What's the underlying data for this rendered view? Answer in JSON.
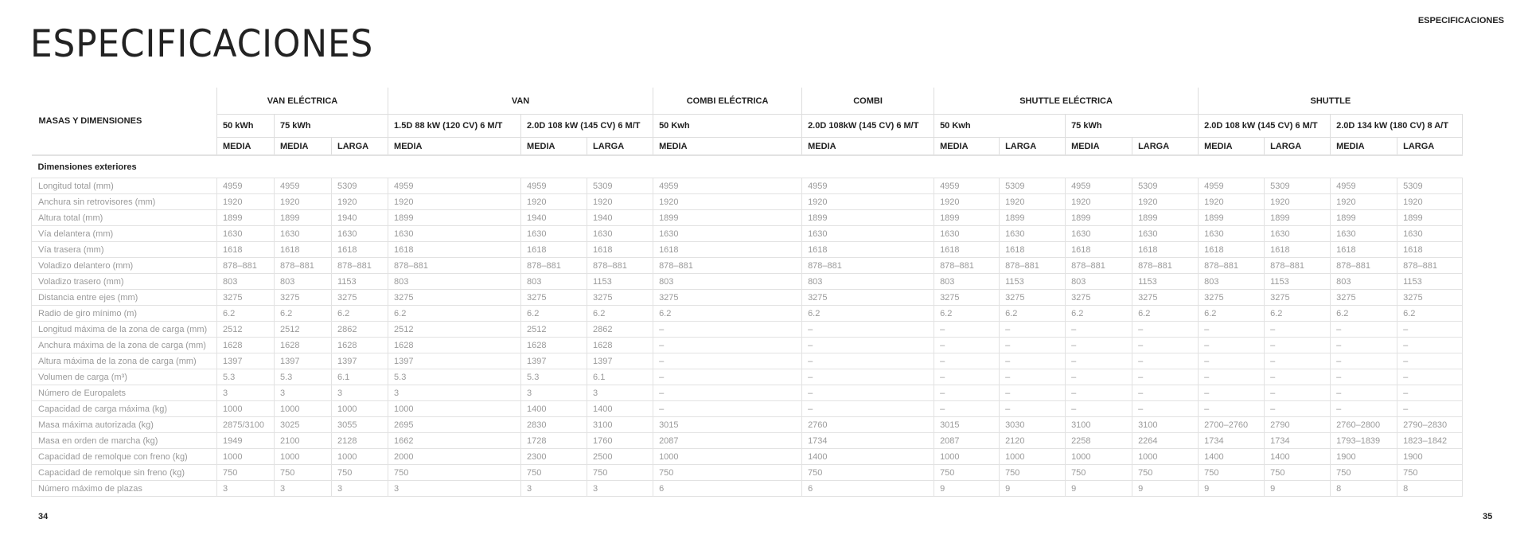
{
  "page_title": "ESPECIFICACIONES",
  "running_head": "ESPECIFICACIONES",
  "page_numbers": {
    "left": "34",
    "right": "35"
  },
  "table": {
    "corner_label": "MASAS Y DIMENSIONES",
    "groups": [
      {
        "label": "VAN ELÉCTRICA",
        "span": 3
      },
      {
        "label": "VAN",
        "span": 3
      },
      {
        "label": "COMBI ELÉCTRICA",
        "span": 1
      },
      {
        "label": "COMBI",
        "span": 1
      },
      {
        "label": "SHUTTLE ELÉCTRICA",
        "span": 4
      },
      {
        "label": "SHUTTLE",
        "span": 4
      }
    ],
    "engines": [
      {
        "label": "50 kWh",
        "span": 1
      },
      {
        "label": "75 kWh",
        "span": 2
      },
      {
        "label": "1.5D 88 kW (120 CV) 6 M/T",
        "span": 1
      },
      {
        "label": "2.0D 108 kW (145 CV) 6 M/T",
        "span": 2
      },
      {
        "label": "50 Kwh",
        "span": 1
      },
      {
        "label": "2.0D 108kW (145 CV) 6 M/T",
        "span": 1
      },
      {
        "label": "50 Kwh",
        "span": 2
      },
      {
        "label": "75 kWh",
        "span": 2
      },
      {
        "label": "2.0D 108 kW (145 CV) 6 M/T",
        "span": 2
      },
      {
        "label": "2.0D 134 kW (180 CV) 8 A/T",
        "span": 2
      }
    ],
    "lengths": [
      "MEDIA",
      "MEDIA",
      "LARGA",
      "MEDIA",
      "MEDIA",
      "LARGA",
      "MEDIA",
      "MEDIA",
      "MEDIA",
      "LARGA",
      "MEDIA",
      "LARGA",
      "MEDIA",
      "LARGA",
      "MEDIA",
      "LARGA"
    ],
    "section": "Dimensiones exteriores",
    "rows": [
      {
        "label": "Longitud total (mm)",
        "values": [
          "4959",
          "4959",
          "5309",
          "4959",
          "4959",
          "5309",
          "4959",
          "4959",
          "4959",
          "5309",
          "4959",
          "5309",
          "4959",
          "5309",
          "4959",
          "5309"
        ]
      },
      {
        "label": "Anchura sin retrovisores (mm)",
        "values": [
          "1920",
          "1920",
          "1920",
          "1920",
          "1920",
          "1920",
          "1920",
          "1920",
          "1920",
          "1920",
          "1920",
          "1920",
          "1920",
          "1920",
          "1920",
          "1920"
        ]
      },
      {
        "label": "Altura total (mm)",
        "values": [
          "1899",
          "1899",
          "1940",
          "1899",
          "1940",
          "1940",
          "1899",
          "1899",
          "1899",
          "1899",
          "1899",
          "1899",
          "1899",
          "1899",
          "1899",
          "1899"
        ]
      },
      {
        "label": "Vía delantera (mm)",
        "values": [
          "1630",
          "1630",
          "1630",
          "1630",
          "1630",
          "1630",
          "1630",
          "1630",
          "1630",
          "1630",
          "1630",
          "1630",
          "1630",
          "1630",
          "1630",
          "1630"
        ]
      },
      {
        "label": "Vía trasera (mm)",
        "values": [
          "1618",
          "1618",
          "1618",
          "1618",
          "1618",
          "1618",
          "1618",
          "1618",
          "1618",
          "1618",
          "1618",
          "1618",
          "1618",
          "1618",
          "1618",
          "1618"
        ]
      },
      {
        "label": "Voladizo delantero (mm)",
        "values": [
          "878–881",
          "878–881",
          "878–881",
          "878–881",
          "878–881",
          "878–881",
          "878–881",
          "878–881",
          "878–881",
          "878–881",
          "878–881",
          "878–881",
          "878–881",
          "878–881",
          "878–881",
          "878–881"
        ]
      },
      {
        "label": "Voladizo trasero (mm)",
        "values": [
          "803",
          "803",
          "1153",
          "803",
          "803",
          "1153",
          "803",
          "803",
          "803",
          "1153",
          "803",
          "1153",
          "803",
          "1153",
          "803",
          "1153"
        ]
      },
      {
        "label": "Distancia entre ejes (mm)",
        "values": [
          "3275",
          "3275",
          "3275",
          "3275",
          "3275",
          "3275",
          "3275",
          "3275",
          "3275",
          "3275",
          "3275",
          "3275",
          "3275",
          "3275",
          "3275",
          "3275"
        ]
      },
      {
        "label": "Radio de giro mínimo (m)",
        "values": [
          "6.2",
          "6.2",
          "6.2",
          "6.2",
          "6.2",
          "6.2",
          "6.2",
          "6.2",
          "6.2",
          "6.2",
          "6.2",
          "6.2",
          "6.2",
          "6.2",
          "6.2",
          "6.2"
        ]
      },
      {
        "label": "Longitud máxima de la zona de carga (mm)",
        "values": [
          "2512",
          "2512",
          "2862",
          "2512",
          "2512",
          "2862",
          "–",
          "–",
          "–",
          "–",
          "–",
          "–",
          "–",
          "–",
          "–",
          "–"
        ]
      },
      {
        "label": "Anchura máxima de la zona de carga (mm)",
        "values": [
          "1628",
          "1628",
          "1628",
          "1628",
          "1628",
          "1628",
          "–",
          "–",
          "–",
          "–",
          "–",
          "–",
          "–",
          "–",
          "–",
          "–"
        ]
      },
      {
        "label": "Altura máxima de la zona de carga (mm)",
        "values": [
          "1397",
          "1397",
          "1397",
          "1397",
          "1397",
          "1397",
          "–",
          "–",
          "–",
          "–",
          "–",
          "–",
          "–",
          "–",
          "–",
          "–"
        ]
      },
      {
        "label": "Volumen de carga (m³)",
        "values": [
          "5.3",
          "5.3",
          "6.1",
          "5.3",
          "5.3",
          "6.1",
          "–",
          "–",
          "–",
          "–",
          "–",
          "–",
          "–",
          "–",
          "–",
          "–"
        ]
      },
      {
        "label": "Número de Europalets",
        "values": [
          "3",
          "3",
          "3",
          "3",
          "3",
          "3",
          "–",
          "–",
          "–",
          "–",
          "–",
          "–",
          "–",
          "–",
          "–",
          "–"
        ]
      },
      {
        "label": "Capacidad de carga máxima (kg)",
        "values": [
          "1000",
          "1000",
          "1000",
          "1000",
          "1400",
          "1400",
          "–",
          "–",
          "–",
          "–",
          "–",
          "–",
          "–",
          "–",
          "–",
          "–"
        ]
      },
      {
        "label": "Masa máxima autorizada (kg)",
        "values": [
          "2875/3100",
          "3025",
          "3055",
          "2695",
          "2830",
          "3100",
          "3015",
          "2760",
          "3015",
          "3030",
          "3100",
          "3100",
          "2700–2760",
          "2790",
          "2760–2800",
          "2790–2830"
        ]
      },
      {
        "label": "Masa en orden de marcha (kg)",
        "values": [
          "1949",
          "2100",
          "2128",
          "1662",
          "1728",
          "1760",
          "2087",
          "1734",
          "2087",
          "2120",
          "2258",
          "2264",
          "1734",
          "1734",
          "1793–1839",
          "1823–1842"
        ]
      },
      {
        "label": "Capacidad de remolque con freno (kg)",
        "values": [
          "1000",
          "1000",
          "1000",
          "2000",
          "2300",
          "2500",
          "1000",
          "1400",
          "1000",
          "1000",
          "1000",
          "1000",
          "1400",
          "1400",
          "1900",
          "1900"
        ]
      },
      {
        "label": "Capacidad de remolque sin freno (kg)",
        "values": [
          "750",
          "750",
          "750",
          "750",
          "750",
          "750",
          "750",
          "750",
          "750",
          "750",
          "750",
          "750",
          "750",
          "750",
          "750",
          "750"
        ]
      },
      {
        "label": "Número máximo de plazas",
        "values": [
          "3",
          "3",
          "3",
          "3",
          "3",
          "3",
          "6",
          "6",
          "9",
          "9",
          "9",
          "9",
          "9",
          "9",
          "8",
          "8"
        ]
      }
    ]
  }
}
